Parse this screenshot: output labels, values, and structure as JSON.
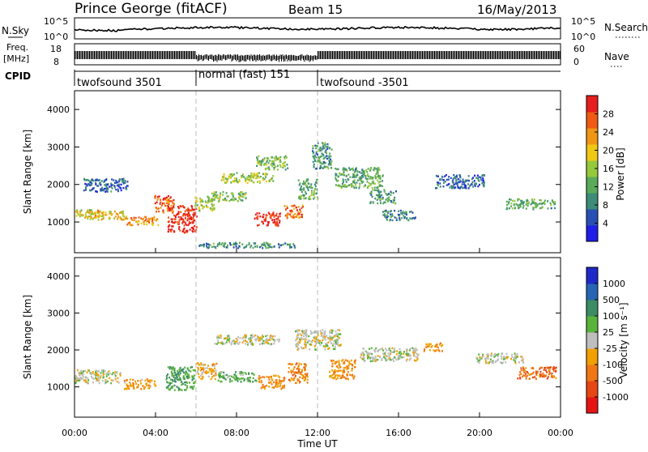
{
  "header": {
    "title": "Prince George (fitACF)",
    "beam": "Beam 15",
    "date": "16/May/2013"
  },
  "strip_panels": {
    "nsky": {
      "label": "N.Sky",
      "ticks_left": [
        "10^5",
        "10^0"
      ],
      "ticks_right": [
        "10^5",
        "10^0"
      ],
      "right_label": "N.Search"
    },
    "freq": {
      "label_line1": "Freq.",
      "label_line2": "[MHz]",
      "ticks_left": [
        "18",
        "8"
      ],
      "ticks_right": [
        "60",
        "0"
      ],
      "right_label": "Nave"
    },
    "cpid": {
      "label": "CPID",
      "segments": [
        {
          "text": "twofsound 3501",
          "start_hour": 0,
          "end_hour": 6
        },
        {
          "text": "normal (fast) 151",
          "start_hour": 6,
          "end_hour": 12
        },
        {
          "text": "twofsound -3501",
          "start_hour": 12,
          "end_hour": 24
        }
      ]
    }
  },
  "colors": {
    "power_scale": [
      "#1e1ee6",
      "#2850b4",
      "#3c8c78",
      "#5aaa5a",
      "#96c83c",
      "#f0c814",
      "#f09614",
      "#f05a14",
      "#e61e1e"
    ],
    "velocity_scale": [
      "#1e28c8",
      "#2864b4",
      "#3c8c64",
      "#5ab43c",
      "#bebebe",
      "#f0a000",
      "#f07814",
      "#e64614",
      "#e61414"
    ]
  },
  "chart_data": [
    {
      "type": "heatmap",
      "name": "power",
      "ylabel": "Slant Range [km]",
      "xlabel": "Time UT",
      "xlim": [
        0,
        24
      ],
      "ylim": [
        180,
        4500
      ],
      "x_ticks": [
        "00:00",
        "04:00",
        "08:00",
        "12:00",
        "16:00",
        "20:00",
        "00:00"
      ],
      "x_tick_hours": [
        0,
        4,
        8,
        12,
        16,
        20,
        24
      ],
      "y_ticks": [
        1000,
        2000,
        3000,
        4000
      ],
      "colorbar": {
        "label": "Power [dB]",
        "ticks": [
          "28",
          "24",
          "20",
          "16",
          "12",
          "8",
          "4"
        ],
        "range": [
          0,
          32
        ]
      },
      "blobs": [
        {
          "t": 0.5,
          "r": 1250,
          "dt": 1.0,
          "dr": 120,
          "v": 18
        },
        {
          "t": 1.5,
          "r": 1200,
          "dt": 1.2,
          "dr": 130,
          "v": 20
        },
        {
          "t": 3.3,
          "r": 1050,
          "dt": 1.0,
          "dr": 130,
          "v": 24
        },
        {
          "t": 4.4,
          "r": 1500,
          "dt": 0.6,
          "dr": 250,
          "v": 26
        },
        {
          "t": 5.3,
          "r": 1100,
          "dt": 0.9,
          "dr": 400,
          "v": 30
        },
        {
          "t": 6.4,
          "r": 1500,
          "dt": 0.6,
          "dr": 200,
          "v": 16
        },
        {
          "t": 7.5,
          "r": 1700,
          "dt": 1.2,
          "dr": 150,
          "v": 14
        },
        {
          "t": 9.5,
          "r": 1100,
          "dt": 0.8,
          "dr": 200,
          "v": 30
        },
        {
          "t": 10.8,
          "r": 1300,
          "dt": 0.6,
          "dr": 200,
          "v": 26
        },
        {
          "t": 8.5,
          "r": 2200,
          "dt": 1.6,
          "dr": 150,
          "v": 16
        },
        {
          "t": 9.7,
          "r": 2600,
          "dt": 1.0,
          "dr": 200,
          "v": 14
        },
        {
          "t": 11.5,
          "r": 1900,
          "dt": 0.6,
          "dr": 300,
          "v": 12
        },
        {
          "t": 12.2,
          "r": 2800,
          "dt": 0.6,
          "dr": 400,
          "v": 10
        },
        {
          "t": 14.0,
          "r": 2200,
          "dt": 1.5,
          "dr": 300,
          "v": 12
        },
        {
          "t": 15.2,
          "r": 1700,
          "dt": 0.8,
          "dr": 200,
          "v": 10
        },
        {
          "t": 16.0,
          "r": 1200,
          "dt": 1.0,
          "dr": 150,
          "v": 8
        },
        {
          "t": 19.0,
          "r": 2100,
          "dt": 1.5,
          "dr": 200,
          "v": 6
        },
        {
          "t": 22.5,
          "r": 1500,
          "dt": 1.5,
          "dr": 150,
          "v": 12
        },
        {
          "t": 1.5,
          "r": 2000,
          "dt": 1.4,
          "dr": 200,
          "v": 6
        },
        {
          "t": 8.5,
          "r": 400,
          "dt": 3.0,
          "dr": 80,
          "v": 10
        }
      ]
    },
    {
      "type": "heatmap",
      "name": "velocity",
      "ylabel": "Slant Range [km]",
      "xlabel": "Time UT",
      "xlim": [
        0,
        24
      ],
      "ylim": [
        180,
        4500
      ],
      "x_ticks": [
        "00:00",
        "04:00",
        "08:00",
        "12:00",
        "16:00",
        "20:00",
        "00:00"
      ],
      "x_tick_hours": [
        0,
        4,
        8,
        12,
        16,
        20,
        24
      ],
      "y_ticks": [
        1000,
        2000,
        3000,
        4000
      ],
      "colorbar": {
        "label": "Velocity [m s⁻¹]",
        "ticks": [
          "1000",
          "500",
          "100",
          "25",
          "-25",
          "-100",
          "-500",
          "-1000"
        ],
        "range": [
          -1200,
          1200
        ]
      },
      "blobs": [
        {
          "t": 0.8,
          "r": 1300,
          "dt": 1.8,
          "dr": 200,
          "v": 0
        },
        {
          "t": 3.2,
          "r": 1100,
          "dt": 1.0,
          "dr": 150,
          "v": -300
        },
        {
          "t": 5.2,
          "r": 1250,
          "dt": 0.9,
          "dr": 350,
          "v": 400
        },
        {
          "t": 6.5,
          "r": 1450,
          "dt": 0.6,
          "dr": 250,
          "v": -200
        },
        {
          "t": 8.0,
          "r": 1300,
          "dt": 1.2,
          "dr": 150,
          "v": 300
        },
        {
          "t": 9.7,
          "r": 1150,
          "dt": 0.8,
          "dr": 200,
          "v": -400
        },
        {
          "t": 11.0,
          "r": 1400,
          "dt": 0.6,
          "dr": 300,
          "v": -500
        },
        {
          "t": 8.5,
          "r": 2300,
          "dt": 2.0,
          "dr": 150,
          "v": 0
        },
        {
          "t": 12.0,
          "r": 2300,
          "dt": 1.4,
          "dr": 300,
          "v": 0
        },
        {
          "t": 13.2,
          "r": 1500,
          "dt": 0.8,
          "dr": 300,
          "v": -400
        },
        {
          "t": 15.5,
          "r": 1900,
          "dt": 1.8,
          "dr": 200,
          "v": 0
        },
        {
          "t": 17.7,
          "r": 2100,
          "dt": 0.6,
          "dr": 120,
          "v": -400
        },
        {
          "t": 22.8,
          "r": 1400,
          "dt": 1.2,
          "dr": 180,
          "v": -600
        },
        {
          "t": 21.0,
          "r": 1800,
          "dt": 1.5,
          "dr": 150,
          "v": 0
        }
      ]
    }
  ]
}
